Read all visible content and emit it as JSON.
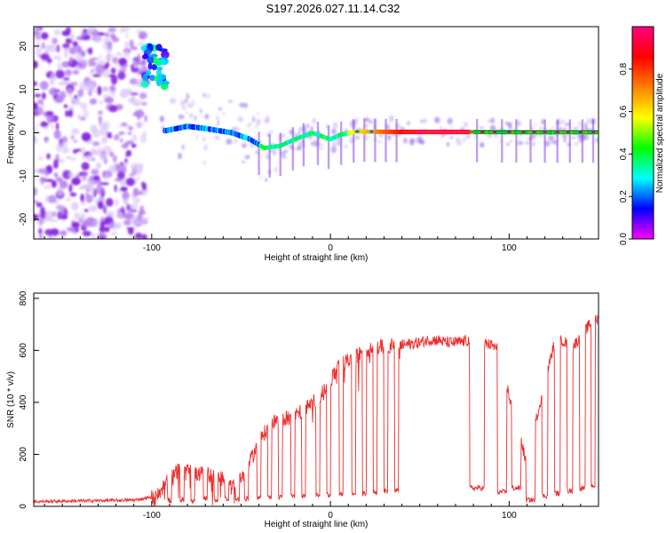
{
  "title": "S197.2026.027.11.14.C32",
  "chart_data": [
    {
      "type": "heatmap",
      "xlabel": "Height of straight line (km)",
      "ylabel": "Frequency (Hz)",
      "xlim": [
        -166,
        150
      ],
      "ylim": [
        -24.5,
        24.5
      ],
      "xticks": [
        -100,
        0,
        100
      ],
      "xtick_labels": [
        "-100",
        "0",
        "100"
      ],
      "yticks": [
        20,
        10,
        0,
        -10,
        -20
      ],
      "ytick_labels": [
        "20",
        "10",
        "0",
        "-10",
        "-20"
      ],
      "colorbar": {
        "label": "Normalized spectral amplitude",
        "ticks": [
          0.0,
          0.2,
          0.4,
          0.6,
          0.8
        ],
        "tick_labels": [
          "0.0",
          "0.2",
          "0.4",
          "0.6",
          "0.8"
        ],
        "colors": [
          "#ff00ff",
          "#0000ff",
          "#00ffff",
          "#00ff00",
          "#ffff00",
          "#ff8000",
          "#ff0000",
          "#ff0080"
        ]
      },
      "ridge": [
        {
          "x": -92,
          "freq": 0.5
        },
        {
          "x": -80,
          "freq": 1.5
        },
        {
          "x": -70,
          "freq": 1.0
        },
        {
          "x": -55,
          "freq": 0.0
        },
        {
          "x": -45,
          "freq": -1.5
        },
        {
          "x": -37,
          "freq": -3.5
        },
        {
          "x": -28,
          "freq": -3.0
        },
        {
          "x": -20,
          "freq": -1.5
        },
        {
          "x": -10,
          "freq": 0.0
        },
        {
          "x": 0,
          "freq": -1.5
        },
        {
          "x": 5,
          "freq": -0.5
        },
        {
          "x": 15,
          "freq": 0.3
        },
        {
          "x": 40,
          "freq": 0.2
        },
        {
          "x": 80,
          "freq": 0.2
        },
        {
          "x": 120,
          "freq": 0.1
        },
        {
          "x": 150,
          "freq": 0.1
        }
      ],
      "noise_region": {
        "x_start": -166,
        "x_end": -103,
        "freq_min": -24.5,
        "freq_max": 24.5
      },
      "bright_patch": {
        "x_center": -98,
        "freq_center": 15,
        "amplitude": 0.3
      }
    },
    {
      "type": "line",
      "xlabel": "Height of straight line (km)",
      "ylabel": "SNR (10 * v/v)",
      "xlim": [
        -166,
        150
      ],
      "ylim": [
        0,
        820
      ],
      "xticks": [
        -100,
        0,
        100
      ],
      "xtick_labels": [
        "-100",
        "0",
        "100"
      ],
      "yticks": [
        0,
        200,
        400,
        600,
        800
      ],
      "ytick_labels": [
        "0",
        "200",
        "400",
        "600",
        "800"
      ],
      "color": "#ee2b2b",
      "x": [
        -166,
        -150,
        -130,
        -110,
        -100,
        -95,
        -90,
        -85,
        -80,
        -75,
        -70,
        -65,
        -60,
        -55,
        -50,
        -45,
        -40,
        -35,
        -30,
        -25,
        -20,
        -15,
        -10,
        -5,
        0,
        5,
        10,
        15,
        20,
        25,
        30,
        35,
        40,
        45,
        50,
        55,
        60,
        65,
        70,
        75,
        80,
        85,
        90,
        95,
        100,
        105,
        110,
        115,
        120,
        125,
        130,
        135,
        140,
        145,
        150
      ],
      "y": [
        18,
        20,
        22,
        24,
        35,
        60,
        110,
        140,
        160,
        120,
        130,
        110,
        120,
        90,
        100,
        170,
        250,
        300,
        330,
        340,
        350,
        370,
        400,
        430,
        480,
        540,
        560,
        580,
        600,
        610,
        615,
        620,
        620,
        625,
        630,
        640,
        640,
        630,
        630,
        635,
        640,
        630,
        620,
        600,
        420,
        310,
        150,
        330,
        480,
        620,
        640,
        610,
        650,
        700,
        720
      ],
      "dips": [
        {
          "x": -90,
          "width": 2,
          "y": 22
        },
        {
          "x": -83,
          "width": 2,
          "y": 25
        },
        {
          "x": -77,
          "width": 2,
          "y": 22
        },
        {
          "x": -70,
          "width": 2,
          "y": 30
        },
        {
          "x": -64,
          "width": 2,
          "y": 25
        },
        {
          "x": -58,
          "width": 2,
          "y": 30
        },
        {
          "x": -52,
          "width": 2,
          "y": 26
        },
        {
          "x": -47,
          "width": 2,
          "y": 28
        },
        {
          "x": -40,
          "width": 2,
          "y": 35
        },
        {
          "x": -34,
          "width": 2,
          "y": 35
        },
        {
          "x": -28,
          "width": 2,
          "y": 35
        },
        {
          "x": -21,
          "width": 2,
          "y": 40
        },
        {
          "x": -15,
          "width": 2,
          "y": 40
        },
        {
          "x": -7,
          "width": 2,
          "y": 45
        },
        {
          "x": -1,
          "width": 2,
          "y": 45
        },
        {
          "x": 6,
          "width": 2,
          "y": 48
        },
        {
          "x": 13,
          "width": 2,
          "y": 48
        },
        {
          "x": 19,
          "width": 2,
          "y": 50
        },
        {
          "x": 25,
          "width": 2,
          "y": 55
        },
        {
          "x": 31,
          "width": 2,
          "y": 58
        },
        {
          "x": 37,
          "width": 2,
          "y": 60
        },
        {
          "x": 82,
          "width": 8,
          "y": 70
        },
        {
          "x": 96,
          "width": 5,
          "y": 55
        },
        {
          "x": 104,
          "width": 5,
          "y": 70
        },
        {
          "x": 112,
          "width": 5,
          "y": 25
        },
        {
          "x": 120,
          "width": 3,
          "y": 40
        },
        {
          "x": 127,
          "width": 3,
          "y": 50
        },
        {
          "x": 134,
          "width": 3,
          "y": 60
        },
        {
          "x": 141,
          "width": 3,
          "y": 70
        },
        {
          "x": 147,
          "width": 2,
          "y": 80
        }
      ]
    }
  ]
}
